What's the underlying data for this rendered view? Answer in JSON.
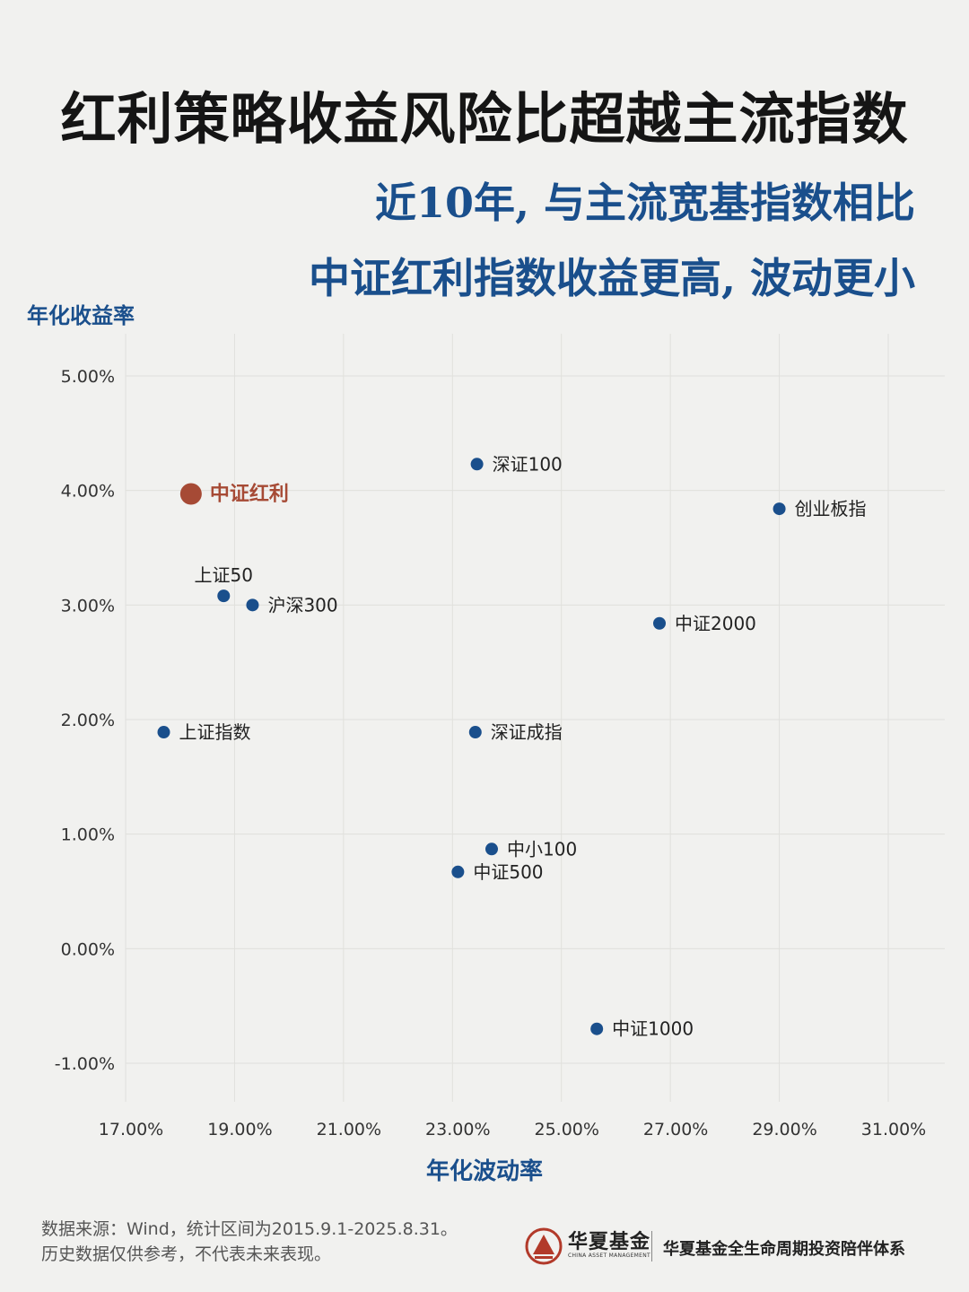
{
  "header": {
    "title": "红利策略收益风险比超越主流指数",
    "subtitle_line1": "近10年, 与主流宽基指数相比",
    "subtitle_line2": "中证红利指数收益更高, 波动更小"
  },
  "chart_data": {
    "type": "scatter",
    "xlabel": "年化波动率",
    "ylabel": "年化收益率",
    "xlim": [
      17,
      31
    ],
    "ylim": [
      -1,
      5
    ],
    "x_ticks": [
      17,
      19,
      21,
      23,
      25,
      27,
      29,
      31
    ],
    "x_tick_labels": [
      "17.00%",
      "19.00%",
      "21.00%",
      "23.00%",
      "25.00%",
      "27.00%",
      "29.00%",
      "31.00%"
    ],
    "y_ticks": [
      5,
      4,
      3,
      2,
      1,
      0,
      -1
    ],
    "y_tick_labels": [
      "5.00%",
      "4.00%",
      "3.00%",
      "2.00%",
      "1.00%",
      "0.00%",
      "-1.00%"
    ],
    "grid": true,
    "colors": {
      "point": "#1a4f8c",
      "highlight": "#a64a35",
      "grid": "#e0e0dc"
    },
    "points": [
      {
        "name": "中证红利",
        "x": 18.2,
        "y": 3.97,
        "highlight": true,
        "label_pos": "right"
      },
      {
        "name": "深证100",
        "x": 23.45,
        "y": 4.23,
        "label_pos": "right"
      },
      {
        "name": "创业板指",
        "x": 29.0,
        "y": 3.84,
        "label_pos": "right"
      },
      {
        "name": "上证50",
        "x": 18.8,
        "y": 3.08,
        "label_pos": "above"
      },
      {
        "name": "沪深300",
        "x": 19.33,
        "y": 3.0,
        "label_pos": "right"
      },
      {
        "name": "中证2000",
        "x": 26.8,
        "y": 2.84,
        "label_pos": "right"
      },
      {
        "name": "上证指数",
        "x": 17.7,
        "y": 1.89,
        "label_pos": "right"
      },
      {
        "name": "深证成指",
        "x": 23.42,
        "y": 1.89,
        "label_pos": "right"
      },
      {
        "name": "中小100",
        "x": 23.72,
        "y": 0.87,
        "label_pos": "right"
      },
      {
        "name": "中证500",
        "x": 23.1,
        "y": 0.67,
        "label_pos": "right"
      },
      {
        "name": "中证1000",
        "x": 25.65,
        "y": -0.7,
        "label_pos": "right"
      }
    ]
  },
  "footer": {
    "source_line1": "数据来源：Wind，统计区间为2015.9.1-2025.8.31。",
    "source_line2": "历史数据仅供参考，不代表未来表现。"
  },
  "brand": {
    "name": "华夏基金",
    "name_en": "CHINA ASSET MANAGEMENT",
    "slogan": "华夏基金全生命周期投资陪伴体系",
    "logo_icon": "china-amc-logo-icon",
    "logo_color": "#b23a2a"
  }
}
